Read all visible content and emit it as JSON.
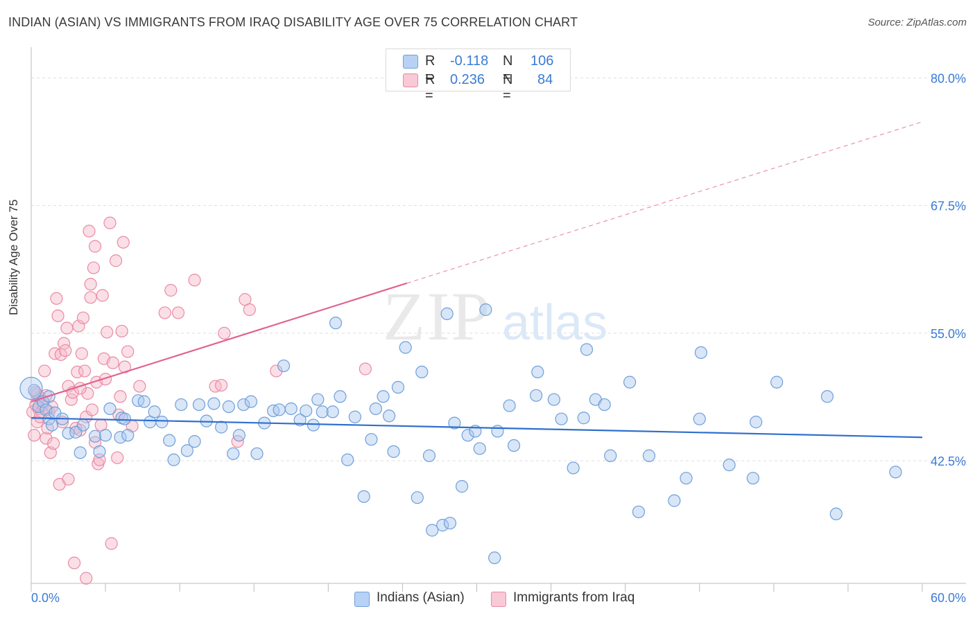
{
  "title": "INDIAN (ASIAN) VS IMMIGRANTS FROM IRAQ DISABILITY AGE OVER 75 CORRELATION CHART",
  "source": "Source: ZipAtlas.com",
  "watermark": {
    "zip": "ZIP",
    "atlas": "atlas"
  },
  "legend": {
    "r_label": "R =",
    "n_label": "N =",
    "series1": {
      "r": "-0.118",
      "n": "106"
    },
    "series2": {
      "r": "0.236",
      "n": "84"
    }
  },
  "bottom_legend": {
    "series1": "Indians (Asian)",
    "series2": "Immigrants from Iraq"
  },
  "colors": {
    "blue_fill": "#a9c8f0",
    "blue_stroke": "#6e9fd8",
    "blue_line": "#2f6fce",
    "pink_fill": "#f6b8c8",
    "pink_stroke": "#e98aa5",
    "pink_line": "#e06390",
    "tick_text": "#3a7bd5",
    "grid": "#dedede"
  },
  "chart_data": {
    "type": "scatter",
    "title": "INDIAN (ASIAN) VS IMMIGRANTS FROM IRAQ DISABILITY AGE OVER 75 CORRELATION CHART",
    "xlabel": "",
    "ylabel": "Disability Age Over 75",
    "xlim": [
      0,
      60
    ],
    "ylim": [
      30.5,
      82.2
    ],
    "x_tick_labels": [
      "0.0%",
      "60.0%"
    ],
    "y_ticks": [
      42.5,
      55.0,
      67.5,
      80.0
    ],
    "y_tick_labels": [
      "42.5%",
      "55.0%",
      "67.5%",
      "80.0%"
    ],
    "grid": true,
    "legend_position": "top-center",
    "series": [
      {
        "name": "Indians (Asian)",
        "r": -0.118,
        "n": 106,
        "trend": {
          "x": [
            0,
            60
          ],
          "y": [
            46.7,
            44.8
          ]
        },
        "points": [
          [
            0.2,
            49.4
          ],
          [
            0.5,
            47.8
          ],
          [
            0.8,
            48.3
          ],
          [
            1.0,
            47.5
          ],
          [
            1.2,
            46.6
          ],
          [
            1.4,
            46.0
          ],
          [
            1.6,
            47.2
          ],
          [
            2.1,
            46.6
          ],
          [
            2.5,
            45.2
          ],
          [
            3.0,
            45.3
          ],
          [
            3.3,
            43.3
          ],
          [
            3.5,
            46.0
          ],
          [
            4.3,
            44.9
          ],
          [
            4.6,
            43.4
          ],
          [
            5.0,
            45.0
          ],
          [
            5.3,
            47.6
          ],
          [
            6.0,
            44.8
          ],
          [
            6.1,
            46.7
          ],
          [
            6.5,
            45.0
          ],
          [
            7.2,
            48.4
          ],
          [
            7.6,
            48.3
          ],
          [
            8.0,
            46.3
          ],
          [
            8.3,
            47.3
          ],
          [
            8.8,
            46.3
          ],
          [
            9.3,
            44.5
          ],
          [
            9.6,
            42.6
          ],
          [
            10.1,
            48.0
          ],
          [
            10.5,
            43.5
          ],
          [
            11.0,
            44.4
          ],
          [
            11.3,
            48.0
          ],
          [
            11.8,
            46.4
          ],
          [
            12.3,
            48.1
          ],
          [
            12.8,
            45.8
          ],
          [
            13.3,
            47.8
          ],
          [
            13.6,
            43.2
          ],
          [
            14.0,
            45.0
          ],
          [
            14.3,
            48.0
          ],
          [
            14.8,
            48.3
          ],
          [
            15.2,
            43.2
          ],
          [
            15.7,
            46.2
          ],
          [
            16.3,
            47.4
          ],
          [
            16.7,
            47.5
          ],
          [
            17.0,
            51.8
          ],
          [
            17.5,
            47.6
          ],
          [
            18.1,
            46.5
          ],
          [
            18.5,
            47.4
          ],
          [
            19.0,
            46.0
          ],
          [
            19.3,
            48.5
          ],
          [
            19.6,
            47.3
          ],
          [
            20.3,
            47.3
          ],
          [
            20.5,
            56.0
          ],
          [
            20.8,
            48.8
          ],
          [
            21.3,
            42.6
          ],
          [
            21.8,
            46.8
          ],
          [
            22.4,
            39.0
          ],
          [
            22.9,
            44.6
          ],
          [
            23.2,
            47.6
          ],
          [
            23.7,
            48.8
          ],
          [
            24.1,
            46.9
          ],
          [
            24.4,
            43.4
          ],
          [
            24.7,
            49.7
          ],
          [
            25.2,
            53.6
          ],
          [
            26.0,
            38.9
          ],
          [
            26.3,
            51.2
          ],
          [
            26.8,
            43.0
          ],
          [
            27.0,
            35.7
          ],
          [
            27.7,
            36.2
          ],
          [
            28.0,
            56.9
          ],
          [
            28.2,
            36.4
          ],
          [
            28.5,
            46.2
          ],
          [
            29.0,
            40.0
          ],
          [
            29.4,
            45.0
          ],
          [
            29.9,
            45.4
          ],
          [
            30.2,
            43.7
          ],
          [
            30.6,
            57.3
          ],
          [
            31.2,
            33.0
          ],
          [
            31.4,
            45.4
          ],
          [
            32.2,
            47.9
          ],
          [
            32.5,
            44.0
          ],
          [
            34.0,
            48.9
          ],
          [
            34.1,
            51.2
          ],
          [
            35.2,
            48.5
          ],
          [
            35.7,
            46.6
          ],
          [
            36.5,
            41.8
          ],
          [
            37.2,
            46.7
          ],
          [
            37.4,
            53.4
          ],
          [
            38.0,
            48.5
          ],
          [
            38.6,
            48.0
          ],
          [
            39.0,
            43.0
          ],
          [
            40.3,
            50.2
          ],
          [
            40.9,
            37.5
          ],
          [
            41.6,
            43.0
          ],
          [
            43.3,
            38.6
          ],
          [
            44.1,
            40.8
          ],
          [
            45.0,
            46.6
          ],
          [
            45.1,
            53.1
          ],
          [
            47.0,
            42.1
          ],
          [
            48.6,
            40.8
          ],
          [
            48.8,
            46.3
          ],
          [
            50.2,
            50.2
          ],
          [
            53.6,
            48.8
          ],
          [
            54.2,
            37.3
          ],
          [
            58.2,
            41.4
          ],
          [
            1.2,
            48.8
          ],
          [
            6.3,
            46.6
          ]
        ]
      },
      {
        "name": "Immigrants from Iraq",
        "r": 0.236,
        "n": 84,
        "trend": {
          "x": [
            0,
            25.3
          ],
          "y": [
            48.3,
            59.9
          ]
        },
        "trend_extension": {
          "x": [
            25.3,
            60
          ],
          "y": [
            59.9,
            75.7
          ]
        },
        "points": [
          [
            0.1,
            47.3
          ],
          [
            0.2,
            45.0
          ],
          [
            0.3,
            48.0
          ],
          [
            0.4,
            49.0
          ],
          [
            0.4,
            46.3
          ],
          [
            0.5,
            47.6
          ],
          [
            0.6,
            48.7
          ],
          [
            0.7,
            47.3
          ],
          [
            0.8,
            48.0
          ],
          [
            0.9,
            51.3
          ],
          [
            1.0,
            44.7
          ],
          [
            1.1,
            45.7
          ],
          [
            1.2,
            47.3
          ],
          [
            1.3,
            43.3
          ],
          [
            1.4,
            47.8
          ],
          [
            1.5,
            44.2
          ],
          [
            1.6,
            53.0
          ],
          [
            1.7,
            58.4
          ],
          [
            1.8,
            56.7
          ],
          [
            1.9,
            40.2
          ],
          [
            2.0,
            52.9
          ],
          [
            2.2,
            54.0
          ],
          [
            2.3,
            53.3
          ],
          [
            2.4,
            55.5
          ],
          [
            2.5,
            40.7
          ],
          [
            2.5,
            49.8
          ],
          [
            2.7,
            48.5
          ],
          [
            2.8,
            49.2
          ],
          [
            2.9,
            32.5
          ],
          [
            3.0,
            45.7
          ],
          [
            3.1,
            51.2
          ],
          [
            3.2,
            55.7
          ],
          [
            3.3,
            45.5
          ],
          [
            3.4,
            53.0
          ],
          [
            3.5,
            56.5
          ],
          [
            3.6,
            51.3
          ],
          [
            3.7,
            46.8
          ],
          [
            3.7,
            31.0
          ],
          [
            3.8,
            49.1
          ],
          [
            3.9,
            65.0
          ],
          [
            4.0,
            58.5
          ],
          [
            4.0,
            59.8
          ],
          [
            4.1,
            47.5
          ],
          [
            4.2,
            61.4
          ],
          [
            4.3,
            63.5
          ],
          [
            4.3,
            44.3
          ],
          [
            4.4,
            50.2
          ],
          [
            4.5,
            42.2
          ],
          [
            4.6,
            42.6
          ],
          [
            4.8,
            58.7
          ],
          [
            4.9,
            52.5
          ],
          [
            5.0,
            50.5
          ],
          [
            5.1,
            55.1
          ],
          [
            5.3,
            65.8
          ],
          [
            5.4,
            34.4
          ],
          [
            5.5,
            52.1
          ],
          [
            5.7,
            62.1
          ],
          [
            5.8,
            42.8
          ],
          [
            5.9,
            47.0
          ],
          [
            6.0,
            48.8
          ],
          [
            6.1,
            55.2
          ],
          [
            6.2,
            63.9
          ],
          [
            6.3,
            51.7
          ],
          [
            6.5,
            53.2
          ],
          [
            6.8,
            45.9
          ],
          [
            7.3,
            49.8
          ],
          [
            9.0,
            57.0
          ],
          [
            9.4,
            59.2
          ],
          [
            9.9,
            57.0
          ],
          [
            11.0,
            60.2
          ],
          [
            12.4,
            49.8
          ],
          [
            12.8,
            49.9
          ],
          [
            13.0,
            55.0
          ],
          [
            13.9,
            44.4
          ],
          [
            14.4,
            58.3
          ],
          [
            14.7,
            57.3
          ],
          [
            16.5,
            51.3
          ],
          [
            22.5,
            51.5
          ],
          [
            0.3,
            49.2
          ],
          [
            0.6,
            46.8
          ],
          [
            1.0,
            48.9
          ],
          [
            2.1,
            46.3
          ],
          [
            3.3,
            49.6
          ],
          [
            4.7,
            46.0
          ]
        ]
      }
    ]
  }
}
